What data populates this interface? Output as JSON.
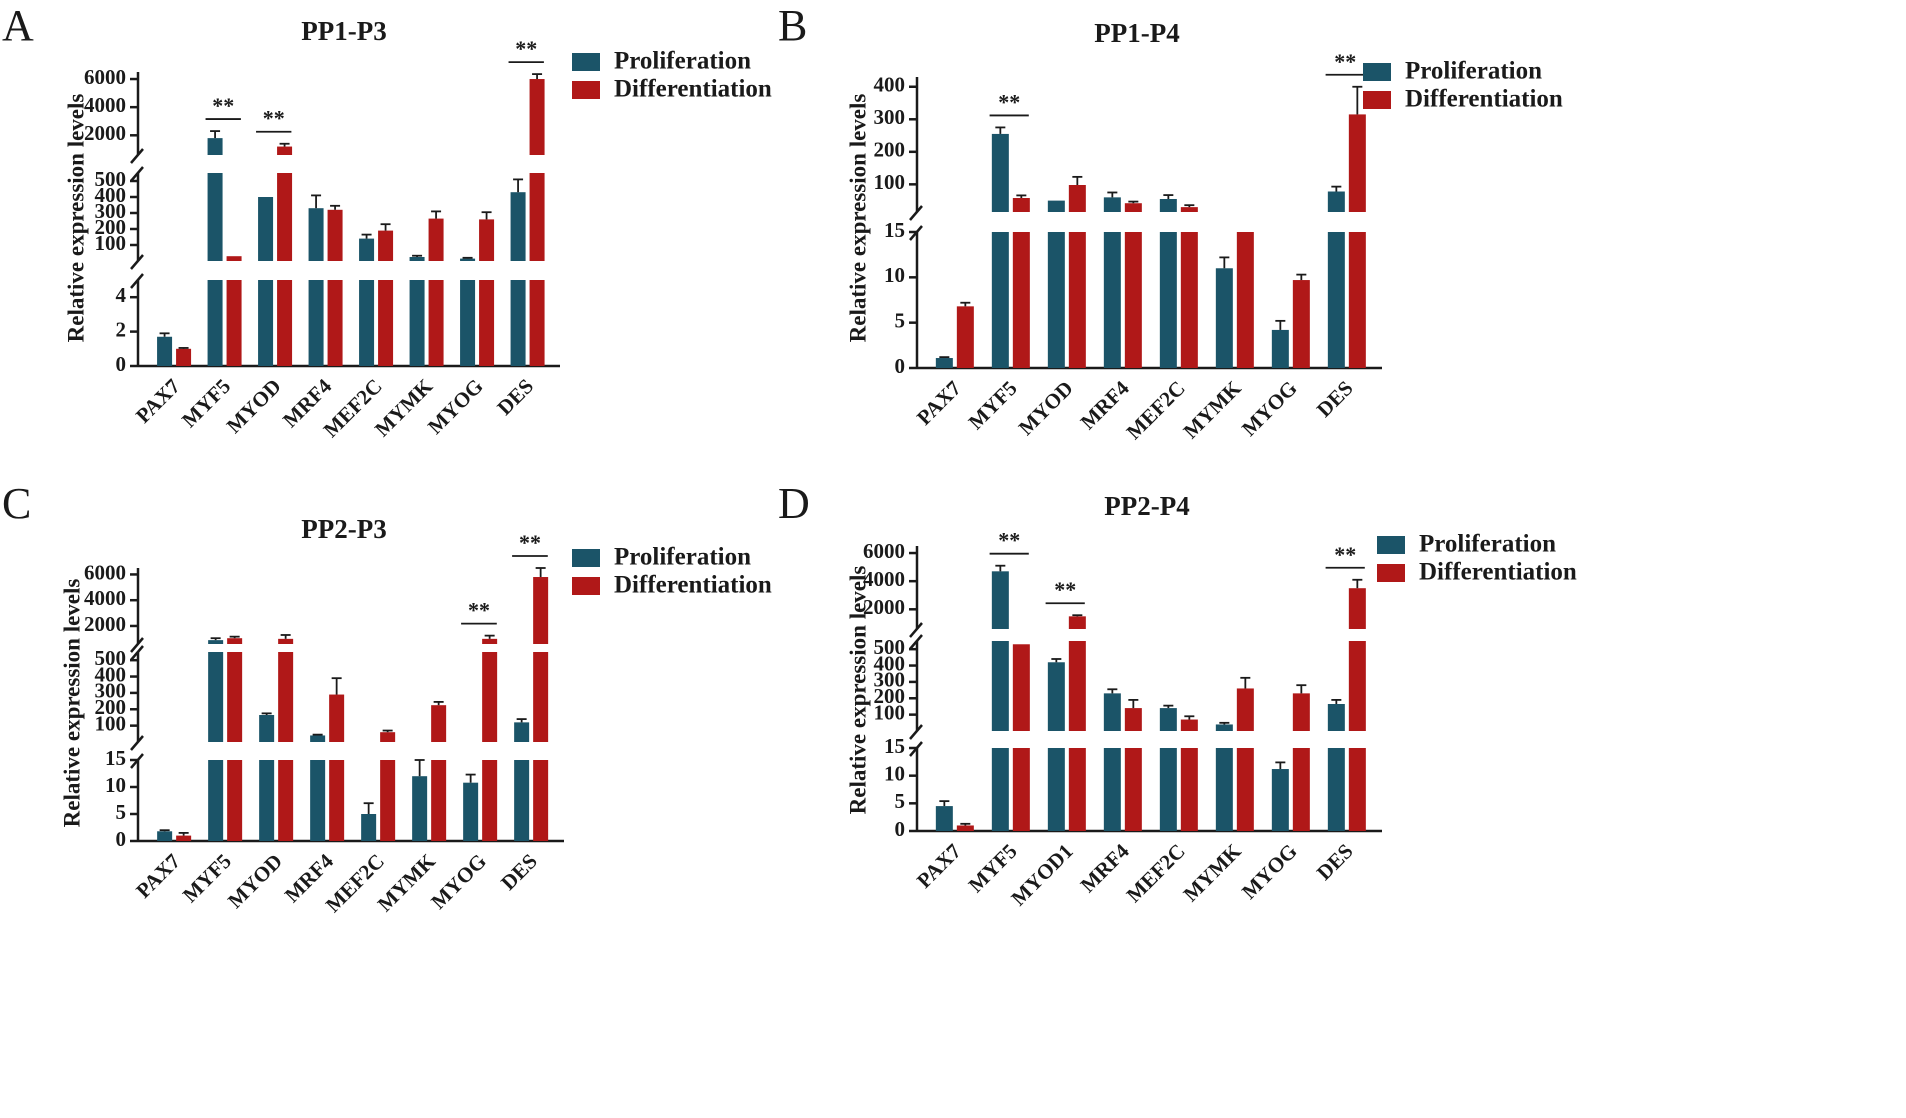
{
  "colors": {
    "proliferation": "#1b5468",
    "differentiation": "#b01818",
    "axis": "#1a1a1a"
  },
  "chart_data": [
    {
      "panel": "A",
      "type": "bar",
      "title": "PP1-P3",
      "ylabel": "Relative expression levels",
      "legend": [
        "Proliferation",
        "Differentiation"
      ],
      "categories": [
        "PAX7",
        "MYF5",
        "MYOD",
        "MRF4",
        "MEF2C",
        "MYMK",
        "MYOG",
        "DES"
      ],
      "segments": [
        {
          "range": [
            0,
            5
          ],
          "ticks": [
            0,
            2,
            4
          ]
        },
        {
          "range": [
            0,
            550
          ],
          "ticks": [
            100,
            200,
            300,
            400,
            500
          ]
        },
        {
          "range": [
            600,
            6500
          ],
          "ticks": [
            2000,
            4000,
            6000
          ]
        }
      ],
      "series": [
        {
          "name": "Proliferation",
          "values": [
            1.7,
            1800,
            400,
            330,
            140,
            25,
            15,
            430
          ],
          "errors": [
            0.2,
            500,
            0,
            80,
            25,
            8,
            5,
            80
          ]
        },
        {
          "name": "Differentiation",
          "values": [
            1.0,
            30,
            1200,
            320,
            190,
            265,
            260,
            6000
          ],
          "errors": [
            0.05,
            0,
            200,
            25,
            40,
            45,
            45,
            350
          ]
        }
      ],
      "significance": [
        {
          "category": "MYF5",
          "label": "**"
        },
        {
          "category": "MYOD",
          "label": "**"
        },
        {
          "category": "DES",
          "label": "**"
        }
      ]
    },
    {
      "panel": "B",
      "type": "bar",
      "title": "PP1-P4",
      "ylabel": "Relative expression levels",
      "legend": [
        "Proliferation",
        "Differentiation"
      ],
      "categories": [
        "PAX7",
        "MYF5",
        "MYOD",
        "MRF4",
        "MEF2C",
        "MYMK",
        "MYOG",
        "DES"
      ],
      "segments": [
        {
          "range": [
            0,
            15
          ],
          "ticks": [
            0,
            5,
            10,
            15
          ]
        },
        {
          "range": [
            15,
            430
          ],
          "ticks": [
            100,
            200,
            300,
            400
          ]
        }
      ],
      "series": [
        {
          "name": "Proliferation",
          "values": [
            1.1,
            255,
            50,
            60,
            55,
            11,
            4.2,
            78
          ],
          "errors": [
            0.1,
            20,
            0,
            15,
            12,
            1.2,
            1.0,
            15
          ]
        },
        {
          "name": "Differentiation",
          "values": [
            6.8,
            58,
            98,
            42,
            30,
            16,
            9.7,
            315
          ],
          "errors": [
            0.4,
            8,
            25,
            5,
            6,
            0,
            0.6,
            85
          ]
        }
      ],
      "significance": [
        {
          "category": "MYF5",
          "label": "**"
        },
        {
          "category": "DES",
          "label": "**"
        }
      ]
    },
    {
      "panel": "C",
      "type": "bar",
      "title": "PP2-P3",
      "ylabel": "Relative expression levels",
      "legend": [
        "Proliferation",
        "Differentiation"
      ],
      "categories": [
        "PAX7",
        "MYF5",
        "MYOD",
        "MRF4",
        "MEF2C",
        "MYMK",
        "MYOG",
        "DES"
      ],
      "segments": [
        {
          "range": [
            0,
            15
          ],
          "ticks": [
            0,
            5,
            10,
            15
          ]
        },
        {
          "range": [
            0,
            550
          ],
          "ticks": [
            100,
            200,
            300,
            400,
            500
          ]
        },
        {
          "range": [
            600,
            6500
          ],
          "ticks": [
            2000,
            4000,
            6000
          ]
        }
      ],
      "series": [
        {
          "name": "Proliferation",
          "values": [
            1.8,
            900,
            165,
            40,
            5,
            12,
            10.8,
            120
          ],
          "errors": [
            0.2,
            150,
            10,
            5,
            2,
            3,
            1.5,
            20
          ]
        },
        {
          "name": "Differentiation",
          "values": [
            1.0,
            1050,
            1000,
            290,
            60,
            225,
            1000,
            5800
          ],
          "errors": [
            0.5,
            120,
            300,
            100,
            10,
            20,
            250,
            1000
          ]
        }
      ],
      "significance": [
        {
          "category": "MYOG",
          "label": "**"
        },
        {
          "category": "DES",
          "label": "**"
        }
      ]
    },
    {
      "panel": "D",
      "type": "bar",
      "title": "PP2-P4",
      "ylabel": "Relative expression levels",
      "legend": [
        "Proliferation",
        "Differentiation"
      ],
      "categories": [
        "PAX7",
        "MYF5",
        "MYOD1",
        "MRF4",
        "MEF2C",
        "MYMK",
        "MYOG",
        "DES"
      ],
      "segments": [
        {
          "range": [
            0,
            15
          ],
          "ticks": [
            0,
            5,
            10,
            15
          ]
        },
        {
          "range": [
            0,
            550
          ],
          "ticks": [
            100,
            200,
            300,
            400,
            500
          ]
        },
        {
          "range": [
            600,
            6500
          ],
          "ticks": [
            2000,
            4000,
            6000
          ]
        }
      ],
      "series": [
        {
          "name": "Proliferation",
          "values": [
            4.5,
            4700,
            420,
            230,
            140,
            40,
            11.2,
            165
          ],
          "errors": [
            0.9,
            400,
            20,
            25,
            15,
            10,
            1.2,
            25
          ]
        },
        {
          "name": "Differentiation",
          "values": [
            1.0,
            530,
            1500,
            140,
            70,
            260,
            230,
            3500
          ],
          "errors": [
            0.3,
            0,
            80,
            50,
            20,
            65,
            50,
            600
          ]
        }
      ],
      "significance": [
        {
          "category": "MYF5",
          "label": "**"
        },
        {
          "category": "MYOD1",
          "label": "**"
        },
        {
          "category": "DES",
          "label": "**"
        }
      ]
    }
  ]
}
